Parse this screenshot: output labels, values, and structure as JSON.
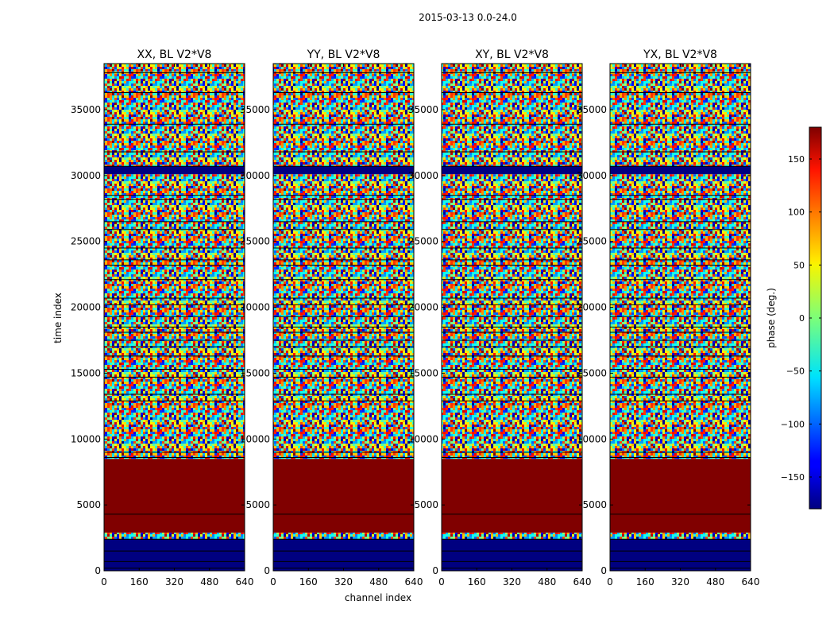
{
  "figure_title": "2015-03-13 0.0-24.0",
  "chart_data": {
    "type": "heatmap",
    "suptitle": "2015-03-13 0.0-24.0",
    "xlabel": "channel index",
    "ylabel": "time index",
    "x_range": [
      0,
      640
    ],
    "y_range": [
      0,
      38500
    ],
    "x_ticks": [
      0,
      160,
      320,
      480,
      640
    ],
    "y_ticks": [
      0,
      5000,
      10000,
      15000,
      20000,
      25000,
      30000,
      35000
    ],
    "colormap": "jet",
    "colorbar": {
      "label": "phase (deg.)",
      "range": [
        -180,
        180
      ],
      "ticks": [
        -150,
        -100,
        -50,
        0,
        50,
        100,
        150
      ],
      "tick_labels": [
        "−150",
        "−100",
        "−50",
        "0",
        "50",
        "100",
        "150"
      ]
    },
    "panels": [
      {
        "title": "XX, BL V2*V8",
        "polarization": "XX",
        "baseline": "V2*V8"
      },
      {
        "title": "YY, BL V2*V8",
        "polarization": "YY",
        "baseline": "V2*V8"
      },
      {
        "title": "XY, BL V2*V8",
        "polarization": "XY",
        "baseline": "V2*V8"
      },
      {
        "title": "YX, BL V2*V8",
        "polarization": "YX",
        "baseline": "V2*V8"
      }
    ],
    "regions": [
      {
        "t_start": 0,
        "t_end": 2400,
        "description": "mostly constant phase near -180 deg with thin gaps",
        "phase_deg": -180
      },
      {
        "t_start": 2400,
        "t_end": 2900,
        "description": "noisy phase band"
      },
      {
        "t_start": 2900,
        "t_end": 8500,
        "description": "constant phase near +180 deg",
        "phase_deg": 180
      },
      {
        "t_start": 8500,
        "t_end": 30100,
        "description": "noisy phase with horizontal stripes and gap lines"
      },
      {
        "t_start": 30100,
        "t_end": 30700,
        "description": "constant phase near -180 deg",
        "phase_deg": -180
      },
      {
        "t_start": 30700,
        "t_end": 38500,
        "description": "noisy phase with horizontal stripes"
      }
    ],
    "gap_lines_time_index": [
      200,
      700,
      1500,
      2400,
      4300,
      8600,
      9000,
      12900,
      13400,
      14700,
      15300,
      16300,
      17000,
      17500,
      18100,
      18500,
      19300,
      20200,
      20700,
      22100,
      23200,
      23600,
      24500,
      25900,
      26500,
      28200,
      28500,
      30700,
      31800,
      33900,
      36300,
      37800
    ]
  }
}
